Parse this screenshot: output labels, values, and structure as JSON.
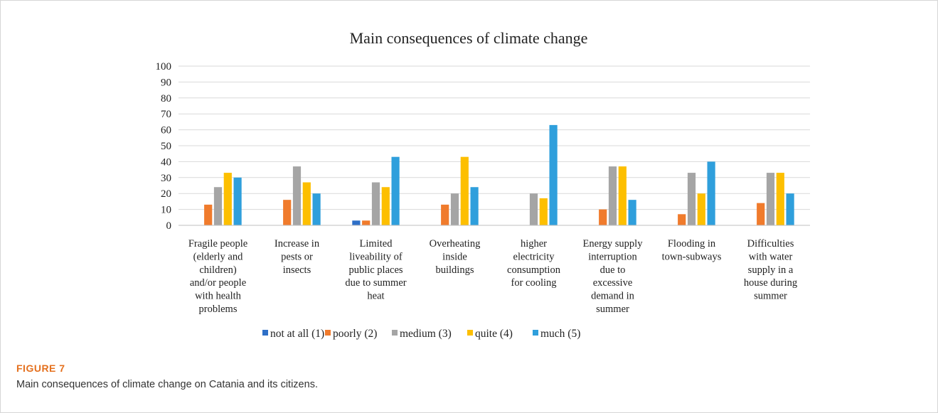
{
  "figure": {
    "label": "FIGURE 7",
    "caption": "Main consequences of climate change on Catania and its citizens."
  },
  "chart_data": {
    "type": "bar",
    "title": "Main consequences of climate change",
    "xlabel": "",
    "ylabel": "",
    "ylim": [
      0,
      100
    ],
    "yticks": [
      0,
      10,
      20,
      30,
      40,
      50,
      60,
      70,
      80,
      90,
      100
    ],
    "grid": true,
    "legend_position": "bottom",
    "categories": [
      [
        "Fragile people",
        "(elderly and",
        "children)",
        "and/or people",
        "with health",
        "problems"
      ],
      [
        "Increase in",
        "pests or",
        "insects"
      ],
      [
        "Limited",
        "liveability of",
        "public places",
        "due to summer",
        "heat"
      ],
      [
        "Overheating",
        "inside",
        "buildings"
      ],
      [
        "higher",
        "electricity",
        "consumption",
        "for cooling"
      ],
      [
        "Energy supply",
        "interruption",
        "due to",
        "excessive",
        "demand in",
        "summer"
      ],
      [
        "Flooding in",
        "town-subways"
      ],
      [
        "Difficulties",
        "with water",
        "supply in a",
        "house during",
        "summer"
      ]
    ],
    "series": [
      {
        "name": "not at all (1)",
        "color": "#2e6fc7",
        "values": [
          0,
          0,
          3,
          0,
          0,
          0,
          0,
          0
        ]
      },
      {
        "name": "poorly (2)",
        "color": "#f07b2c",
        "values": [
          13,
          16,
          3,
          13,
          0,
          10,
          7,
          14
        ]
      },
      {
        "name": "medium (3)",
        "color": "#a5a5a5",
        "values": [
          24,
          37,
          27,
          20,
          20,
          37,
          33,
          33
        ]
      },
      {
        "name": "quite (4)",
        "color": "#fdbf00",
        "values": [
          33,
          27,
          24,
          43,
          17,
          37,
          20,
          33
        ]
      },
      {
        "name": "much (5)",
        "color": "#2f9fdc",
        "values": [
          30,
          20,
          43,
          24,
          63,
          16,
          40,
          20
        ]
      }
    ]
  }
}
